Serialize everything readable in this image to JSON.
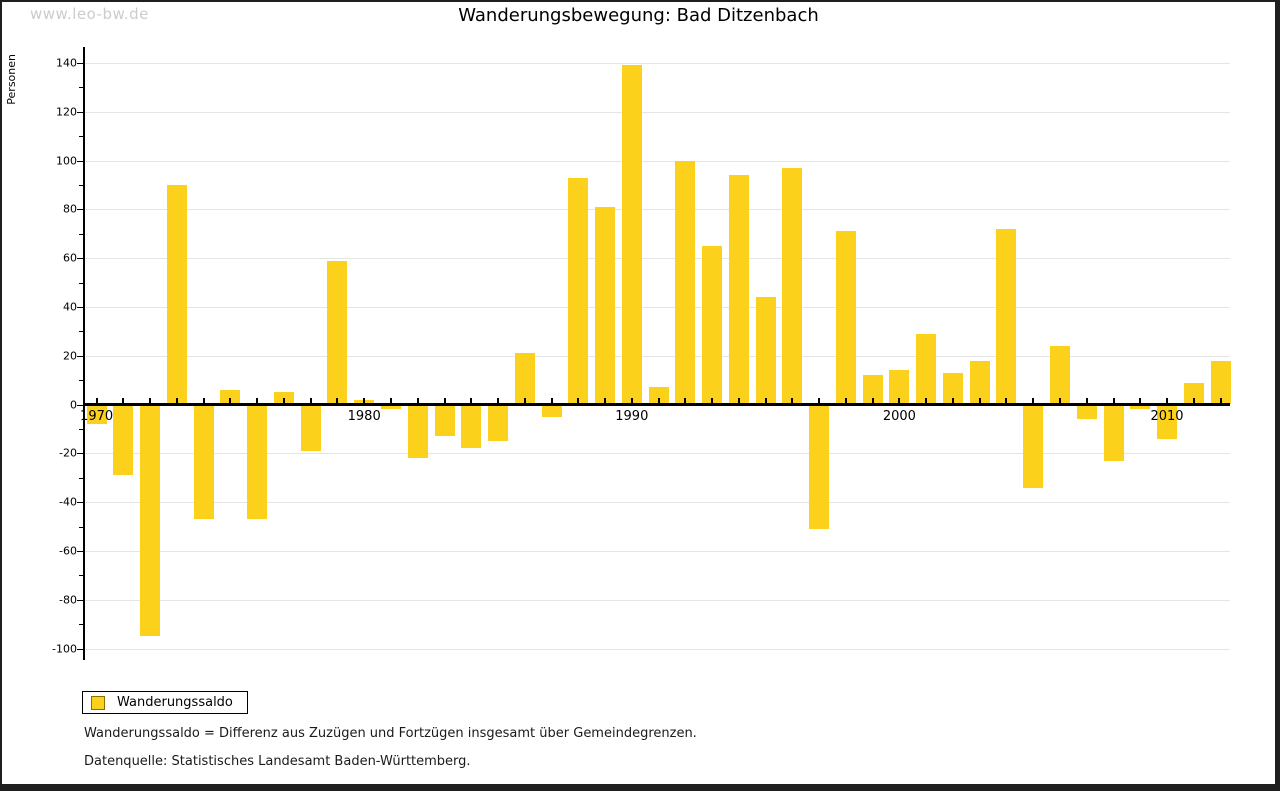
{
  "watermark": "www.leo-bw.de",
  "title": "Wanderungsbewegung: Bad Ditzenbach",
  "y_axis_label": "Personen",
  "legend": {
    "label": "Wanderungssaldo",
    "swatch_color": "#fcd11c"
  },
  "footnotes": [
    "Wanderungssaldo = Differenz aus Zuzügen und Fortzügen insgesamt über Gemeindegrenzen.",
    "Datenquelle: Statistisches Landesamt Baden-Württemberg."
  ],
  "colors": {
    "bar": "#fcd11c",
    "swatch_border": "#8a7000",
    "gridline": "#e5e5e5",
    "axis": "#000000",
    "watermark": "#cccccc"
  },
  "chart_data": {
    "type": "bar",
    "title": "Wanderungsbewegung: Bad Ditzenbach",
    "xlabel": "",
    "ylabel": "Personen",
    "series_name": "Wanderungssaldo",
    "x": [
      1970,
      1971,
      1972,
      1973,
      1974,
      1975,
      1976,
      1977,
      1978,
      1979,
      1980,
      1981,
      1982,
      1983,
      1984,
      1985,
      1986,
      1987,
      1988,
      1989,
      1990,
      1991,
      1992,
      1993,
      1994,
      1995,
      1996,
      1997,
      1998,
      1999,
      2000,
      2001,
      2002,
      2003,
      2004,
      2005,
      2006,
      2007,
      2008,
      2009,
      2010,
      2011,
      2012
    ],
    "values": [
      -8,
      -29,
      -95,
      90,
      -47,
      6,
      -47,
      5,
      -19,
      59,
      2,
      -2,
      -22,
      -13,
      -18,
      -15,
      21,
      -5,
      93,
      81,
      139,
      7,
      100,
      65,
      94,
      44,
      97,
      -51,
      71,
      12,
      14,
      29,
      13,
      18,
      72,
      -34,
      24,
      -6,
      -23,
      -2,
      -14,
      9,
      18
    ],
    "ylim": [
      -105,
      146
    ],
    "yticks": [
      -100,
      -80,
      -60,
      -40,
      -20,
      0,
      20,
      40,
      60,
      80,
      100,
      120,
      140
    ],
    "xtick_labels": [
      1970,
      1980,
      1990,
      2000,
      2010
    ],
    "grid": true,
    "legend_position": "bottom-left",
    "bar_color": "#fcd11c"
  }
}
